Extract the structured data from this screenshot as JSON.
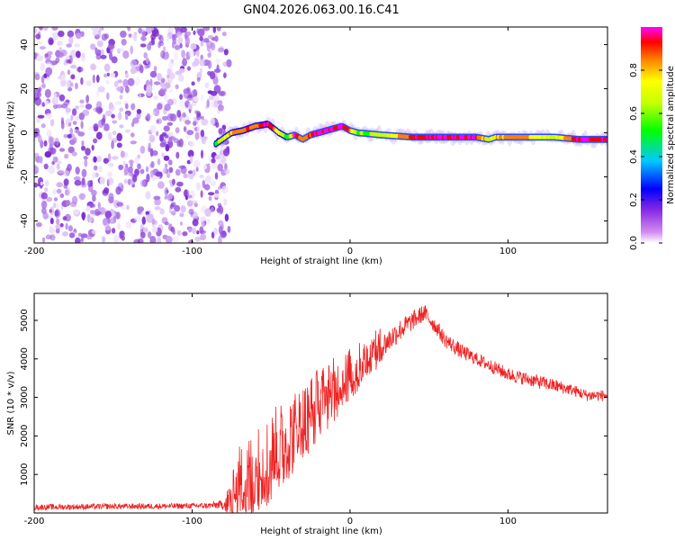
{
  "page": {
    "title": "GN04.2026.063.00.16.C41"
  },
  "chart_data": [
    {
      "id": "spectrogram",
      "type": "heatmap",
      "title": "GN04.2026.063.00.16.C41",
      "xlabel": "Height of straight line (km)",
      "ylabel": "Frequency (Hz)",
      "xlim": [
        -200,
        163
      ],
      "ylim": [
        -50,
        48
      ],
      "x_ticks": [
        -200,
        -100,
        0,
        100
      ],
      "y_ticks": [
        -40,
        -20,
        0,
        20,
        40
      ],
      "x_tick_labels": [
        "-200",
        "-100",
        "0",
        "100"
      ],
      "y_tick_labels": [
        "-40",
        "-20",
        "0",
        "20",
        "40"
      ],
      "noise_region_x": [
        -200,
        -80
      ],
      "signal_track": {
        "x": [
          -85,
          -75,
          -68,
          -60,
          -52,
          -45,
          -40,
          -35,
          -30,
          -25,
          -20,
          -15,
          -10,
          -5,
          0,
          5,
          20,
          40,
          60,
          80,
          88,
          92,
          100,
          110,
          130,
          145,
          163
        ],
        "freq": [
          -5,
          0,
          1,
          3,
          4,
          0,
          -2,
          -1,
          -3,
          -1,
          0,
          1,
          2,
          3,
          1,
          0,
          -1,
          -2,
          -2,
          -2,
          -3,
          -2,
          -2,
          -2,
          -2,
          -3,
          -3
        ],
        "amplitude": [
          0.45,
          0.75,
          0.8,
          0.85,
          0.9,
          0.7,
          0.4,
          0.9,
          0.8,
          0.85,
          0.95,
          0.95,
          0.9,
          0.95,
          0.8,
          0.5,
          0.55,
          0.9,
          0.95,
          0.9,
          0.6,
          0.7,
          0.85,
          0.8,
          0.6,
          0.95,
          0.9
        ]
      },
      "colorbar": {
        "label": "Normalized spectral amplitude",
        "ticks": [
          0.0,
          0.2,
          0.4,
          0.6,
          0.8
        ],
        "tick_labels": [
          "0.0",
          "0.2",
          "0.4",
          "0.6",
          "0.8"
        ],
        "range": [
          0,
          1
        ],
        "colors": [
          "#ffffff",
          "#a020f0",
          "#0000ff",
          "#00c0ff",
          "#00ff00",
          "#ffff00",
          "#ff8000",
          "#ff0000",
          "#ff00ff"
        ]
      }
    },
    {
      "id": "snr",
      "type": "line",
      "xlabel": "Height of straight line (km)",
      "ylabel": "SNR (10 * v/v)",
      "xlim": [
        -200,
        163
      ],
      "ylim": [
        0,
        5700
      ],
      "x_ticks": [
        -200,
        -100,
        0,
        100
      ],
      "y_ticks": [
        1000,
        2000,
        3000,
        4000,
        5000
      ],
      "x_tick_labels": [
        "-200",
        "-100",
        "0",
        "100"
      ],
      "y_tick_labels": [
        "1000",
        "2000",
        "3000",
        "4000",
        "5000"
      ],
      "series": [
        {
          "name": "SNR",
          "color": "#ee2222",
          "x": [
            -200,
            -150,
            -110,
            -90,
            -80,
            -75,
            -70,
            -60,
            -50,
            -40,
            -30,
            -20,
            -10,
            0,
            10,
            20,
            30,
            40,
            47,
            55,
            60,
            70,
            80,
            90,
            100,
            110,
            120,
            130,
            140,
            150,
            163
          ],
          "base": [
            150,
            170,
            180,
            190,
            220,
            300,
            600,
            900,
            1300,
            1800,
            2200,
            2700,
            3100,
            3500,
            3900,
            4300,
            4700,
            5000,
            5200,
            4800,
            4500,
            4200,
            4000,
            3800,
            3600,
            3500,
            3400,
            3300,
            3200,
            3050,
            3050
          ],
          "spread": [
            150,
            150,
            150,
            150,
            250,
            800,
            1500,
            1700,
            1700,
            1600,
            1500,
            1400,
            1200,
            1000,
            800,
            700,
            600,
            500,
            450,
            400,
            400,
            400,
            350,
            350,
            350,
            350,
            350,
            350,
            300,
            300,
            300
          ]
        }
      ]
    }
  ],
  "colors": {
    "axis": "#000000",
    "line": "#ee2222"
  }
}
